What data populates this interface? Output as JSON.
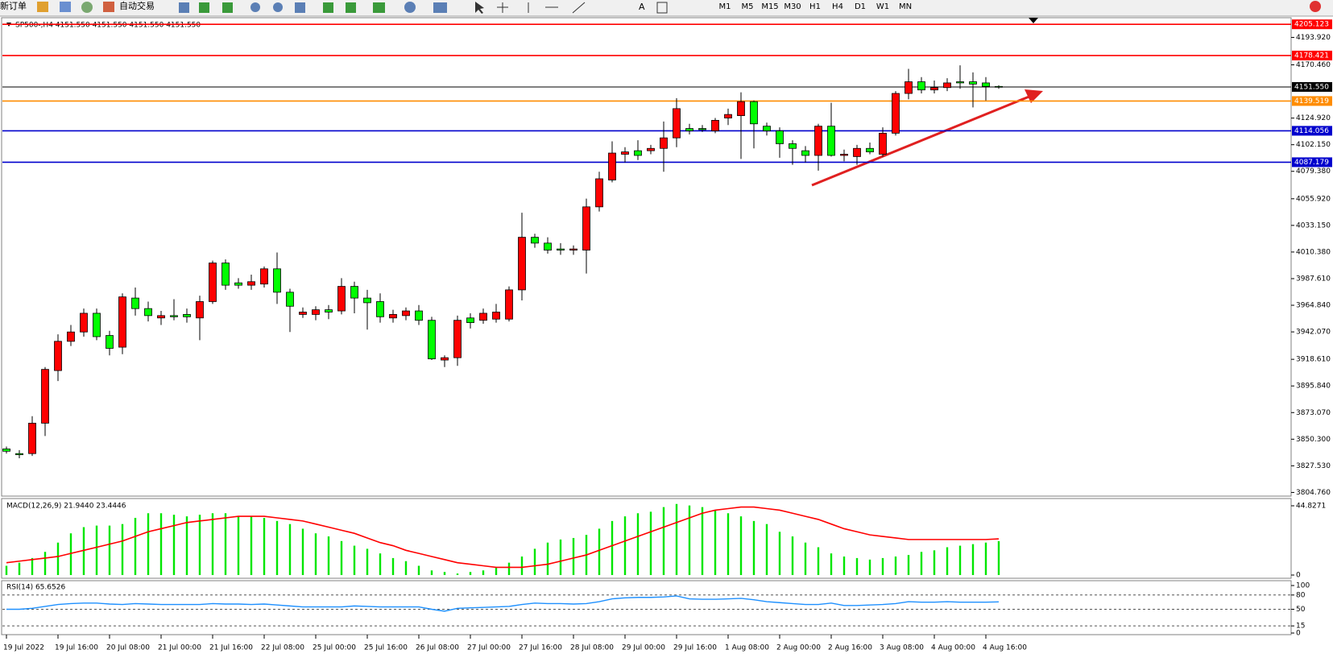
{
  "toolbar": {
    "new_order": "新订单",
    "auto_trading": "自动交易",
    "timeframes": [
      "M1",
      "M5",
      "M15",
      "M30",
      "H1",
      "H4",
      "D1",
      "W1",
      "MN"
    ]
  },
  "chart_data": [
    {
      "type": "candlestick",
      "title": "SP500-,H4  4151.550 4151.550 4151.550 4151.550",
      "categories": [
        "19 Jul 2022",
        null,
        null,
        null,
        "19 Jul 16:00",
        null,
        null,
        null,
        "20 Jul 08:00",
        null,
        null,
        null,
        "21 Jul 00:00",
        null,
        null,
        null,
        "21 Jul 16:00",
        null,
        null,
        null,
        "22 Jul 08:00",
        null,
        null,
        null,
        "25 Jul 00:00",
        null,
        null,
        null,
        "25 Jul 16:00",
        null,
        null,
        null,
        "26 Jul 08:00",
        null,
        null,
        null,
        "27 Jul 00:00",
        null,
        null,
        null,
        "27 Jul 16:00",
        null,
        null,
        null,
        "28 Jul 08:00",
        null,
        null,
        null,
        "29 Jul 00:00",
        null,
        null,
        null,
        "29 Jul 16:00",
        null,
        null,
        null,
        "1 Aug 08:00",
        null,
        null,
        null,
        "2 Aug 00:00",
        null,
        null,
        null,
        "2 Aug 16:00",
        null,
        null,
        null,
        "3 Aug 08:00",
        null,
        null,
        null,
        "4 Aug 00:00",
        null,
        null,
        null,
        "4 Aug 16:00",
        null
      ],
      "open": [
        3842,
        3838,
        3838,
        3864,
        3909,
        3934,
        3942,
        3958,
        3939,
        3929,
        3971,
        3962,
        3954,
        3956,
        3957,
        3954,
        3968,
        4001,
        3984,
        3982,
        3983,
        3996,
        3976,
        3957,
        3957,
        3961,
        3960,
        3981,
        3971,
        3968,
        3954,
        3956,
        3960,
        3952,
        3918,
        3920,
        3954,
        3952,
        3953,
        3953,
        3978,
        4023,
        4018,
        4013,
        4012,
        4012,
        4049,
        4072,
        4094,
        4097,
        4097,
        4099,
        4108,
        4116,
        4116,
        4114,
        4125,
        4127,
        4139,
        4118,
        4114,
        4103,
        4097,
        4093,
        4118,
        4093,
        4092,
        4099,
        4094,
        4112,
        4146,
        4156,
        4149,
        4151,
        4156,
        4156,
        4155,
        4152
      ],
      "high": [
        3844,
        3841,
        3870,
        3912,
        3940,
        3948,
        3962,
        3962,
        3943,
        3975,
        3980,
        3968,
        3960,
        3970,
        3962,
        3973,
        4003,
        4004,
        3988,
        3991,
        3998,
        4010,
        3979,
        3963,
        3964,
        3965,
        3988,
        3985,
        3978,
        3975,
        3961,
        3963,
        3965,
        3955,
        3922,
        3956,
        3958,
        3962,
        3966,
        3981,
        4044,
        4026,
        4023,
        4018,
        4016,
        4056,
        4079,
        4105,
        4100,
        4106,
        4102,
        4122,
        4142,
        4120,
        4119,
        4125,
        4133,
        4147,
        4140,
        4121,
        4117,
        4106,
        4101,
        4120,
        4138,
        4098,
        4102,
        4104,
        4117,
        4148,
        4167,
        4160,
        4157,
        4159,
        4170,
        4164,
        4160,
        4153
      ],
      "low": [
        3838,
        3834,
        3836,
        3853,
        3900,
        3930,
        3938,
        3935,
        3922,
        3923,
        3956,
        3951,
        3948,
        3952,
        3950,
        3935,
        3966,
        3978,
        3979,
        3978,
        3980,
        3966,
        3942,
        3954,
        3952,
        3953,
        3957,
        3958,
        3944,
        3950,
        3950,
        3952,
        3948,
        3918,
        3912,
        3913,
        3945,
        3949,
        3950,
        3951,
        3969,
        4014,
        4009,
        4008,
        4008,
        3992,
        4045,
        4070,
        4087,
        4089,
        4094,
        4079,
        4100,
        4111,
        4113,
        4112,
        4119,
        4090,
        4099,
        4110,
        4091,
        4085,
        4087,
        4080,
        4092,
        4088,
        4085,
        4094,
        4092,
        4110,
        4141,
        4146,
        4146,
        4148,
        4150,
        4134,
        4140,
        4150
      ],
      "close": [
        3840,
        3837,
        3864,
        3910,
        3934,
        3942,
        3958,
        3938,
        3928,
        3972,
        3962,
        3956,
        3956,
        3955,
        3955,
        3968,
        4001,
        3982,
        3982,
        3985,
        3996,
        3976,
        3964,
        3959,
        3961,
        3959,
        3981,
        3971,
        3967,
        3955,
        3957,
        3960,
        3952,
        3919,
        3920,
        3952,
        3950,
        3958,
        3959,
        3978,
        4023,
        4018,
        4012,
        4012,
        4013,
        4049,
        4073,
        4095,
        4096,
        4093,
        4099,
        4108,
        4133,
        4114,
        4115,
        4123,
        4128,
        4139,
        4120,
        4114,
        4103,
        4099,
        4093,
        4118,
        4093,
        4094,
        4099,
        4096,
        4112,
        4146,
        4156,
        4149,
        4151,
        4155,
        4155,
        4154,
        4152,
        4151.55
      ],
      "up_color": "#ff0000",
      "down_color": "#00ff00",
      "ylim": [
        3803,
        4208
      ],
      "yticks": [
        {
          "value": 4193.92,
          "label": "4193.920"
        },
        {
          "value": 4170.46,
          "label": "4170.460"
        },
        {
          "value": 4124.92,
          "label": "4124.920"
        },
        {
          "value": 4102.15,
          "label": "4102.150"
        },
        {
          "value": 4079.38,
          "label": "4079.380"
        },
        {
          "value": 4055.92,
          "label": "4055.920"
        },
        {
          "value": 4033.15,
          "label": "4033.150"
        },
        {
          "value": 4010.38,
          "label": "4010.380"
        },
        {
          "value": 3987.61,
          "label": "3987.610"
        },
        {
          "value": 3964.84,
          "label": "3964.840"
        },
        {
          "value": 3942.07,
          "label": "3942.070"
        },
        {
          "value": 3918.61,
          "label": "3918.610"
        },
        {
          "value": 3895.84,
          "label": "3895.840"
        },
        {
          "value": 3873.07,
          "label": "3873.070"
        },
        {
          "value": 3850.3,
          "label": "3850.300"
        },
        {
          "value": 3827.53,
          "label": "3827.530"
        },
        {
          "value": 3804.76,
          "label": "3804.760"
        }
      ],
      "levels": [
        {
          "value": 4205.123,
          "color": "#ff0000"
        },
        {
          "value": 4178.421,
          "color": "#ff0000"
        },
        {
          "value": 4151.55,
          "label": "4151.550",
          "color": "#000000"
        },
        {
          "value": 4139.519,
          "color": "#ff8c00"
        },
        {
          "value": 4114.056,
          "color": "#0000cd"
        },
        {
          "value": 4087.179,
          "color": "#0000cd"
        }
      ]
    },
    {
      "type": "macd",
      "title": "MACD(12,26,9) 21.9440 23.4446",
      "ylim": [
        0,
        44.8271
      ],
      "yticks": [
        44.8271,
        0
      ],
      "series": [
        {
          "type": "bar",
          "color": "#00e600",
          "values": [
            6,
            8,
            11,
            15,
            21,
            27,
            31,
            32,
            32,
            33,
            37,
            40,
            40,
            39,
            38,
            39,
            40,
            40,
            38,
            38,
            37,
            35,
            33,
            30,
            27,
            25,
            22,
            19,
            17,
            14,
            11,
            9,
            6,
            3,
            2,
            1,
            2,
            3,
            5,
            8,
            12,
            17,
            21,
            23,
            24,
            26,
            30,
            35,
            38,
            40,
            41,
            44,
            46,
            45,
            44,
            42,
            40,
            38,
            35,
            33,
            28,
            25,
            21,
            18,
            14,
            12,
            11,
            10,
            11,
            12,
            13,
            15,
            16,
            18,
            19,
            20,
            21,
            21.944
          ]
        },
        {
          "type": "line",
          "color": "#ff0000",
          "values": [
            8,
            9,
            10,
            11,
            12,
            14,
            16,
            18,
            20,
            22,
            25,
            28,
            30,
            32,
            34,
            35,
            36,
            37,
            38,
            38,
            38,
            37,
            36,
            35,
            33,
            31,
            29,
            27,
            24,
            21,
            19,
            16,
            14,
            12,
            10,
            8,
            7,
            6,
            5,
            5,
            5,
            6,
            7,
            9,
            11,
            13,
            16,
            19,
            22,
            25,
            28,
            31,
            34,
            37,
            40,
            42,
            43,
            44,
            44,
            43,
            42,
            40,
            38,
            36,
            33,
            30,
            28,
            26,
            25,
            24,
            23,
            23,
            23,
            23,
            23,
            23,
            23,
            23.4446
          ]
        }
      ]
    },
    {
      "type": "line",
      "title": "RSI(14) 65.6526",
      "color": "#1e90ff",
      "ylim": [
        0,
        100
      ],
      "yticks": [
        100,
        80,
        50,
        15,
        0
      ],
      "values": [
        50,
        50,
        52,
        56,
        60,
        62,
        63,
        63,
        61,
        60,
        62,
        61,
        60,
        60,
        60,
        60,
        62,
        61,
        61,
        60,
        61,
        59,
        57,
        55,
        55,
        55,
        55,
        57,
        56,
        55,
        55,
        55,
        55,
        50,
        46,
        52,
        53,
        54,
        55,
        56,
        60,
        63,
        62,
        62,
        61,
        62,
        66,
        72,
        74,
        75,
        75,
        76,
        78,
        72,
        71,
        71,
        72,
        73,
        70,
        66,
        64,
        62,
        60,
        60,
        63,
        58,
        58,
        59,
        60,
        62,
        66,
        65,
        65,
        66,
        65,
        65,
        65,
        65.6526
      ]
    }
  ]
}
